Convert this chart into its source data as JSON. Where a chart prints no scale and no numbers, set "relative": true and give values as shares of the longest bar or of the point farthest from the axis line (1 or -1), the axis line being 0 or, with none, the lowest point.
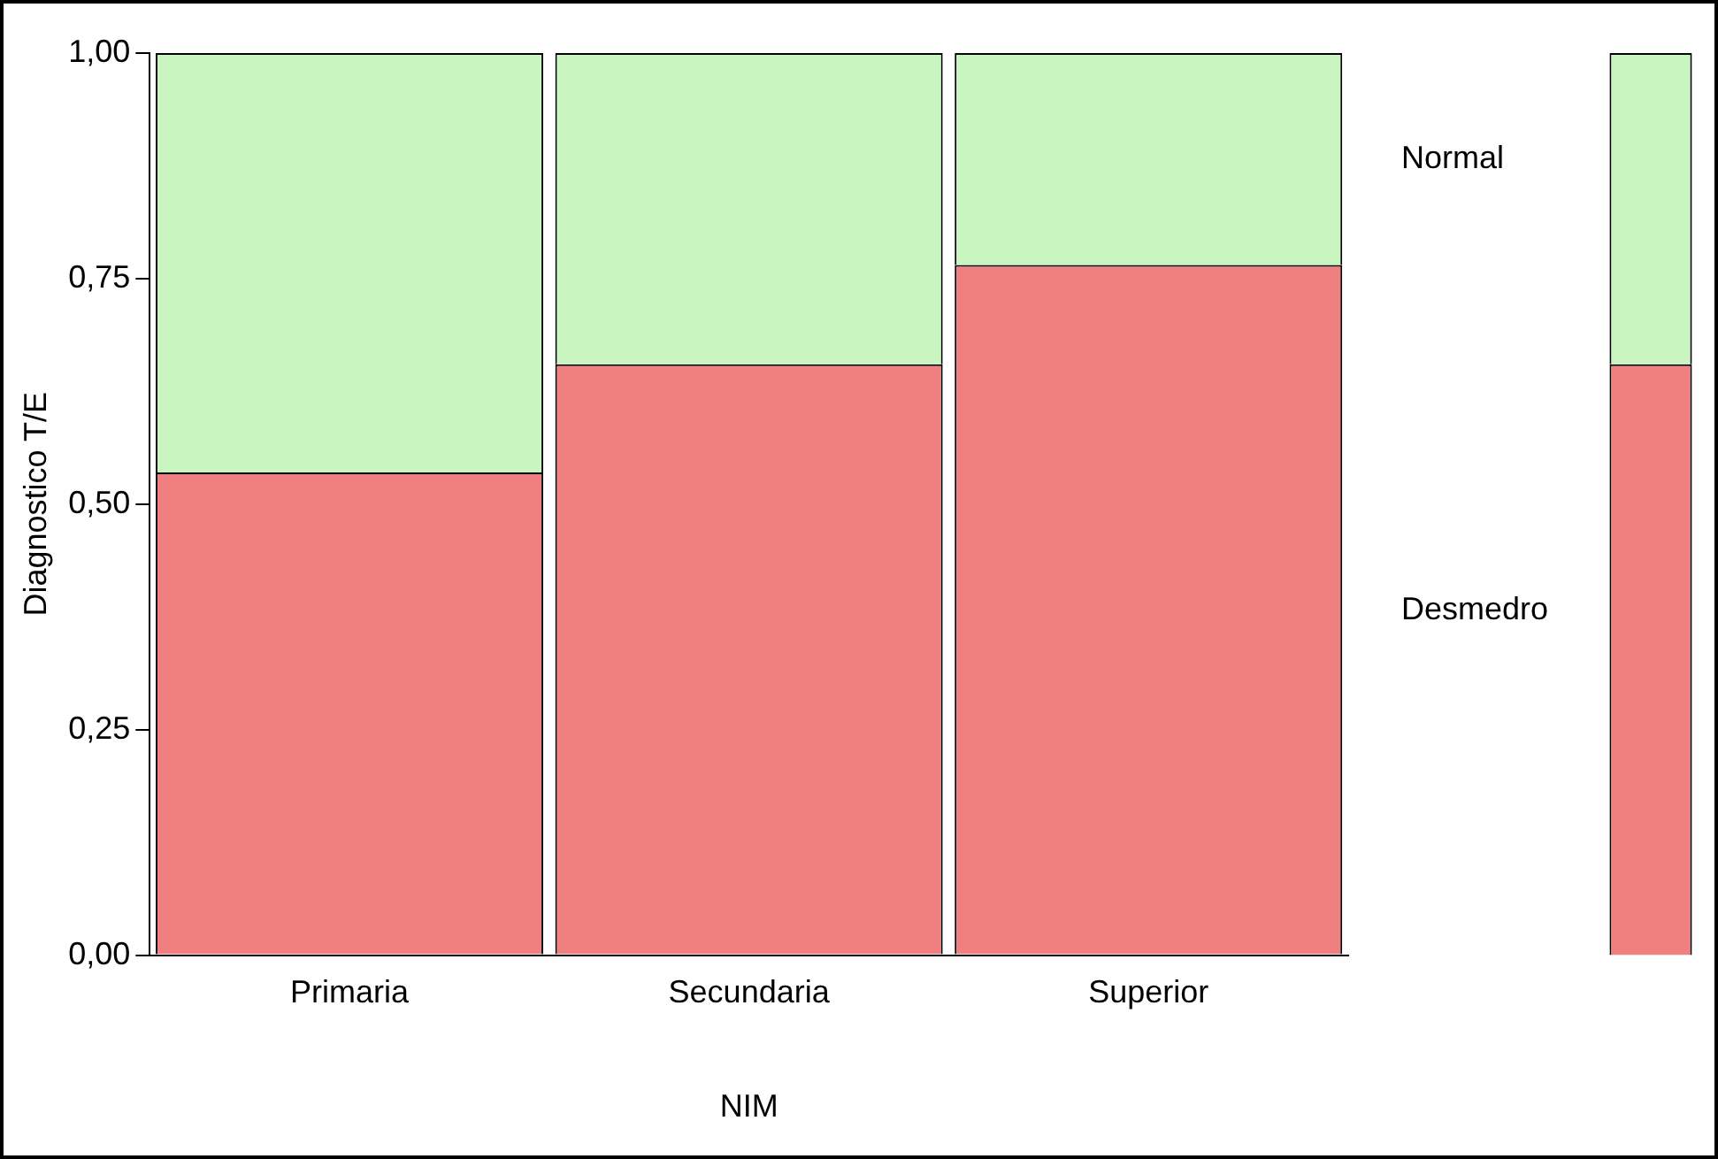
{
  "chart_data": [
    {
      "type": "bar",
      "stacked": true,
      "xlabel": "NIM",
      "ylabel": "Diagnostico T/E",
      "categories": [
        "Primaria",
        "Secundaria",
        "Superior"
      ],
      "series": [
        {
          "name": "Desmedro",
          "color": "#f08080",
          "values": [
            0.535,
            0.655,
            0.765
          ]
        },
        {
          "name": "Normal",
          "color": "#c8f5c0",
          "values": [
            0.465,
            0.345,
            0.235
          ]
        }
      ],
      "ylim": [
        0,
        1
      ],
      "yticks": [
        {
          "value": 0,
          "label": "0,00"
        },
        {
          "value": 0.25,
          "label": "0,25"
        },
        {
          "value": 0.5,
          "label": "0,50"
        },
        {
          "value": 0.75,
          "label": "0,75"
        },
        {
          "value": 1,
          "label": "1,00"
        }
      ],
      "grid": false,
      "legend": false
    },
    {
      "type": "bar",
      "stacked": true,
      "categories": [
        null
      ],
      "series": [
        {
          "color": "#f08080",
          "values": [
            0.655
          ]
        },
        {
          "color": "#c8f5c0",
          "values": [
            0.345
          ]
        }
      ],
      "relative": true,
      "grid": false,
      "legend": false
    }
  ]
}
